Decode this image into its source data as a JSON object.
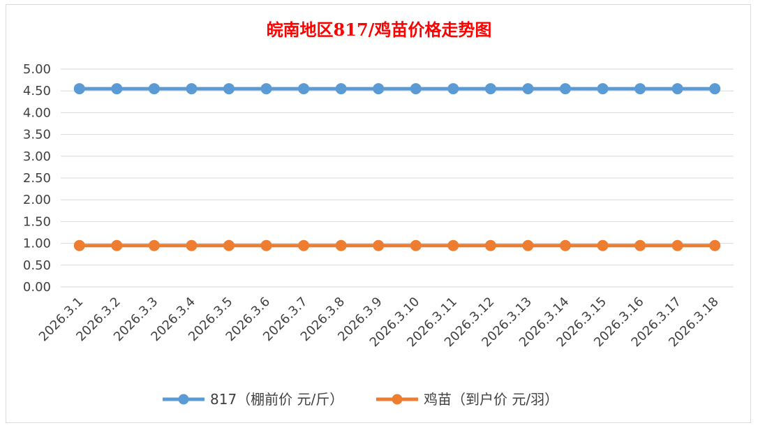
{
  "chart_data": {
    "type": "line",
    "title": "皖南地区817/鸡苗价格走势图",
    "categories": [
      "2026.3.1",
      "2026.3.2",
      "2026.3.3",
      "2026.3.4",
      "2026.3.5",
      "2026.3.6",
      "2026.3.7",
      "2026.3.8",
      "2026.3.9",
      "2026.3.10",
      "2026.3.11",
      "2026.3.12",
      "2026.3.13",
      "2026.3.14",
      "2026.3.15",
      "2026.3.16",
      "2026.3.17",
      "2026.3.18"
    ],
    "series": [
      {
        "name": "817（棚前价 元/斤）",
        "color": "#5b9bd5",
        "values": [
          4.55,
          4.55,
          4.55,
          4.55,
          4.55,
          4.55,
          4.55,
          4.55,
          4.55,
          4.55,
          4.55,
          4.55,
          4.55,
          4.55,
          4.55,
          4.55,
          4.55,
          4.55
        ]
      },
      {
        "name": "鸡苗（到户价 元/羽）",
        "color": "#ed7d31",
        "values": [
          0.95,
          0.95,
          0.95,
          0.95,
          0.95,
          0.95,
          0.95,
          0.95,
          0.95,
          0.95,
          0.95,
          0.95,
          0.95,
          0.95,
          0.95,
          0.95,
          0.95,
          0.95
        ]
      }
    ],
    "yticks": [
      "0.00",
      "0.50",
      "1.00",
      "1.50",
      "2.00",
      "2.50",
      "3.00",
      "3.50",
      "4.00",
      "4.50",
      "5.00"
    ],
    "ylim": [
      0,
      5
    ],
    "grid": true,
    "legend_position": "bottom",
    "xlabel": "",
    "ylabel": ""
  }
}
